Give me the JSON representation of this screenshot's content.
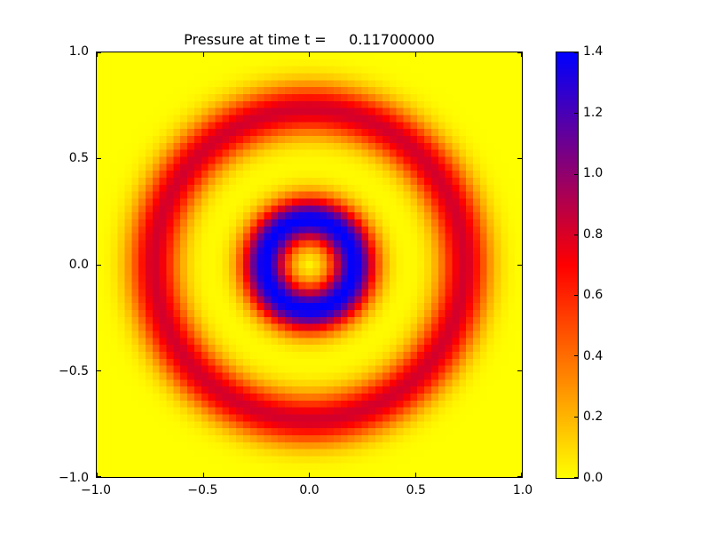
{
  "figure": {
    "title": "Pressure at time t =     0.11700000",
    "background_color": "#ffffff",
    "frame_color": "#000000"
  },
  "chart_data": {
    "type": "heatmap",
    "title": "Pressure at time t =     0.11700000",
    "xlabel": "",
    "ylabel": "",
    "xlim": [
      -1.0,
      1.0
    ],
    "ylim": [
      -1.0,
      1.0
    ],
    "grid": false,
    "x_tick_values": [
      -1.0,
      -0.5,
      0.0,
      0.5,
      1.0
    ],
    "x_tick_labels": [
      "−1.0",
      "−0.5",
      "0.0",
      "0.5",
      "1.0"
    ],
    "y_tick_values": [
      1.0,
      0.5,
      0.0,
      -0.5,
      -1.0
    ],
    "y_tick_labels": [
      "1.0",
      "0.5",
      "0.0",
      "−0.5",
      "−1.0"
    ],
    "colormap_stops": [
      {
        "value": 0.0,
        "color": "#ffff00"
      },
      {
        "value": 0.7,
        "color": "#ff0000"
      },
      {
        "value": 1.4,
        "color": "#0000ff"
      }
    ],
    "colorbar": {
      "position": "right",
      "vmin": 0.0,
      "vmax": 1.4,
      "tick_values": [
        0.0,
        0.2,
        0.4,
        0.6,
        0.8,
        1.0,
        1.2,
        1.4
      ],
      "tick_labels": [
        "0.0",
        "0.2",
        "0.4",
        "0.6",
        "0.8",
        "1.0",
        "1.2",
        "1.4"
      ]
    },
    "field": {
      "model": "radial_gaussian_rings",
      "description": "Radially symmetric pressure pulse centered at origin: yellow (p=0) core, blue annulus peaking 1.4 near r=0.21, yellow valley near r=0.5, dark-red ring peaking about 0.82 near r=0.73, yellow background outside",
      "grid_n": 61,
      "center": [
        0.0,
        0.0
      ],
      "background_value": 0.0,
      "rings": [
        {
          "amplitude": 1.4,
          "radius": 0.21,
          "width": 0.11
        },
        {
          "amplitude": 0.82,
          "radius": 0.73,
          "width": 0.12
        }
      ]
    }
  }
}
